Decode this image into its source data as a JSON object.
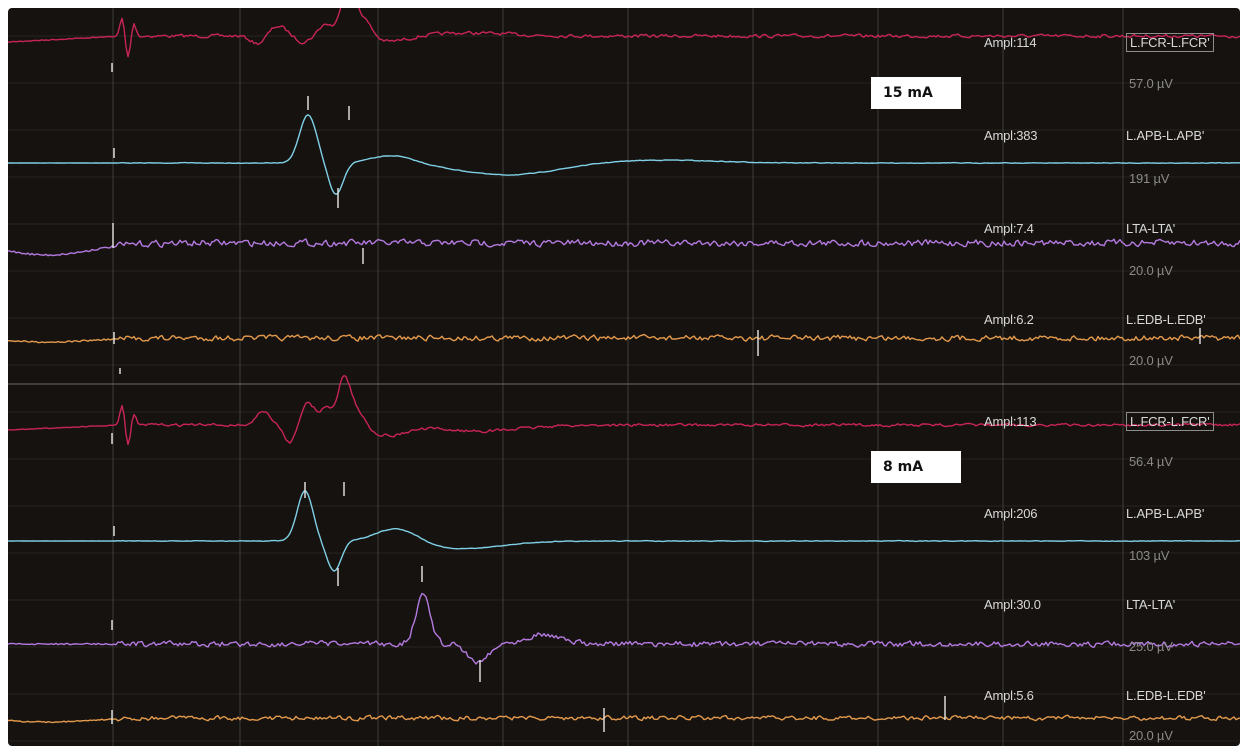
{
  "panels": [
    {
      "stimulus_label": "15 mA",
      "channels": [
        {
          "ampl": "Ampl:114",
          "lead": "L.FCR-L.FCR'",
          "scale": "57.0 µV",
          "color": "#c8245a",
          "boxed": true
        },
        {
          "ampl": "Ampl:383",
          "lead": "L.APB-L.APB'",
          "scale": "191 µV",
          "color": "#7fd0e6",
          "boxed": false
        },
        {
          "ampl": "Ampl:7.4",
          "lead": "LTA-LTA'",
          "scale": "20.0 µV",
          "color": "#b47ae0",
          "boxed": false
        },
        {
          "ampl": "Ampl:6.2",
          "lead": "L.EDB-L.EDB'",
          "scale": "20.0 µV",
          "color": "#e39a4c",
          "boxed": false
        }
      ]
    },
    {
      "stimulus_label": "8 mA",
      "channels": [
        {
          "ampl": "Ampl:113",
          "lead": "L.FCR-L.FCR'",
          "scale": "56.4 µV",
          "color": "#c8245a",
          "boxed": true
        },
        {
          "ampl": "Ampl:206",
          "lead": "L.APB-L.APB'",
          "scale": "103 µV",
          "color": "#7fd0e6",
          "boxed": false
        },
        {
          "ampl": "Ampl:30.0",
          "lead": "LTA-LTA'",
          "scale": "25.0 µV",
          "color": "#b47ae0",
          "boxed": false
        },
        {
          "ampl": "Ampl:5.6",
          "lead": "L.EDB-L.EDB'",
          "scale": "20.0 µV",
          "color": "#e39a4c",
          "boxed": false
        }
      ]
    }
  ],
  "colors": {
    "background": "#16120f",
    "grid": "#4a4a44",
    "marker": "#e8e8e8"
  }
}
